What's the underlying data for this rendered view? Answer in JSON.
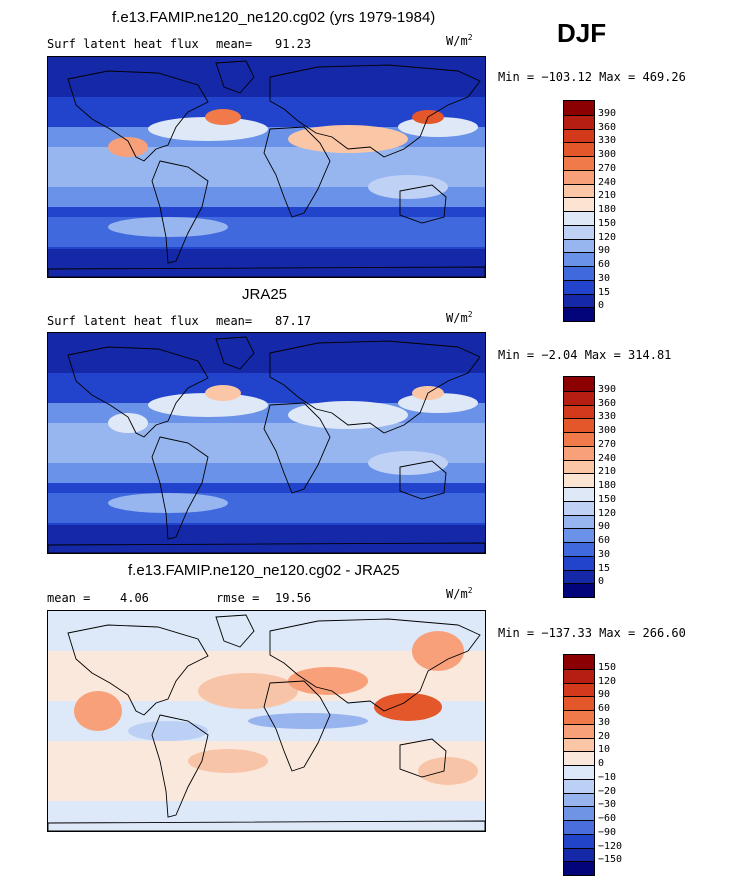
{
  "season": "DJF",
  "panels": [
    {
      "title": "f.e13.FAMIP.ne120_ne120.cg02 (yrs 1979-1984)",
      "left_label": "Surf latent heat flux",
      "stat1_label": "mean=",
      "stat1_value": "91.23",
      "stat2_label": "",
      "stat2_value": "",
      "units_base": "W/m",
      "units_exp": "2",
      "minmax": "Min = −103.12 Max = 469.26",
      "colorbar_labels": [
        "390",
        "360",
        "330",
        "300",
        "270",
        "240",
        "210",
        "180",
        "150",
        "120",
        "90",
        "60",
        "30",
        "15",
        "0"
      ],
      "colorbar_colors": [
        "#8b0000",
        "#b51e10",
        "#d33a1c",
        "#e4572a",
        "#f07a4a",
        "#f7a07a",
        "#fbc6a6",
        "#fbe4d2",
        "#dfe8f7",
        "#bfd2f5",
        "#97b6f0",
        "#6a92e8",
        "#4169de",
        "#2244cc",
        "#1428a8",
        "#04047a"
      ],
      "map_palette": "abs"
    },
    {
      "title": "JRA25",
      "left_label": "Surf latent heat flux",
      "stat1_label": "mean=",
      "stat1_value": "87.17",
      "stat2_label": "",
      "stat2_value": "",
      "units_base": "W/m",
      "units_exp": "2",
      "minmax": "Min =  −2.04 Max = 314.81",
      "colorbar_labels": [
        "390",
        "360",
        "330",
        "300",
        "270",
        "240",
        "210",
        "180",
        "150",
        "120",
        "90",
        "60",
        "30",
        "15",
        "0"
      ],
      "colorbar_colors": [
        "#8b0000",
        "#b51e10",
        "#d33a1c",
        "#e4572a",
        "#f07a4a",
        "#f7a07a",
        "#fbc6a6",
        "#fbe4d2",
        "#dfe8f7",
        "#bfd2f5",
        "#97b6f0",
        "#6a92e8",
        "#4169de",
        "#2244cc",
        "#1428a8",
        "#04047a"
      ],
      "map_palette": "abs"
    },
    {
      "title": "f.e13.FAMIP.ne120_ne120.cg02 - JRA25",
      "left_label": "",
      "stat1_label": "mean =",
      "stat1_value": "4.06",
      "stat2_label": "rmse =",
      "stat2_value": "19.56",
      "units_base": "W/m",
      "units_exp": "2",
      "minmax": "Min = −137.33 Max = 266.60",
      "colorbar_labels": [
        "150",
        "120",
        "90",
        "60",
        "30",
        "20",
        "10",
        "0",
        "−10",
        "−20",
        "−30",
        "−60",
        "−90",
        "−120",
        "−150"
      ],
      "colorbar_colors": [
        "#8b0000",
        "#b51e10",
        "#d33a1c",
        "#e4572a",
        "#f07a4a",
        "#f7a07a",
        "#fbc6a6",
        "#fbe8dc",
        "#dde8f8",
        "#bcd0f5",
        "#98b4ef",
        "#6f94e6",
        "#4a6fdc",
        "#2244c8",
        "#1428a8",
        "#04047a"
      ],
      "map_palette": "diff"
    }
  ],
  "chart_data": [
    {
      "type": "heatmap",
      "title": "f.e13.FAMIP.ne120_ne120.cg02 (yrs 1979-1984)",
      "variable": "Surf latent heat flux",
      "units": "W/m2",
      "mean": 91.23,
      "min": -103.12,
      "max": 469.26,
      "levels": [
        0,
        15,
        30,
        60,
        90,
        120,
        150,
        180,
        210,
        240,
        270,
        300,
        330,
        360,
        390
      ]
    },
    {
      "type": "heatmap",
      "title": "JRA25",
      "variable": "Surf latent heat flux",
      "units": "W/m2",
      "mean": 87.17,
      "min": -2.04,
      "max": 314.81,
      "levels": [
        0,
        15,
        30,
        60,
        90,
        120,
        150,
        180,
        210,
        240,
        270,
        300,
        330,
        360,
        390
      ]
    },
    {
      "type": "heatmap",
      "title": "f.e13.FAMIP.ne120_ne120.cg02 - JRA25",
      "units": "W/m2",
      "mean": 4.06,
      "rmse": 19.56,
      "min": -137.33,
      "max": 266.6,
      "levels": [
        -150,
        -120,
        -90,
        -60,
        -30,
        -20,
        -10,
        0,
        10,
        20,
        30,
        60,
        90,
        120,
        150
      ]
    }
  ]
}
